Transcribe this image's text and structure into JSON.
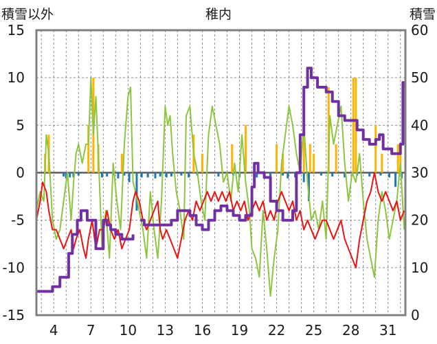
{
  "chart_data": {
    "type": "line",
    "title": "稚内",
    "left_axis_label": "積雪以外",
    "right_axis_label": "積雪",
    "xlim": [
      2.6,
      32.4
    ],
    "x_ticks": [
      4,
      7,
      10,
      13,
      16,
      19,
      22,
      25,
      28,
      31
    ],
    "ylim_left": [
      -15,
      15
    ],
    "y_ticks_left": [
      -15,
      -10,
      -5,
      0,
      5,
      10,
      15
    ],
    "ylim_right": [
      0,
      60
    ],
    "y_ticks_right": [
      0,
      10,
      20,
      30,
      40,
      50,
      60
    ],
    "grid": true,
    "colors": {
      "green": "#8cc63f",
      "red": "#ee1111",
      "purple": "#7030a0",
      "orange": "#ffb300",
      "blue": "#1f78b4",
      "zero_line": "#5a5a5a",
      "frame": "#7f7f7f"
    },
    "series": [
      {
        "axis": "left",
        "style": "line",
        "color_key": "green",
        "x": [
          2.6,
          2.9,
          3.2,
          3.4,
          3.6,
          3.9,
          4.2,
          4.5,
          4.8,
          5.1,
          5.4,
          5.6,
          5.8,
          6.0,
          6.3,
          6.6,
          6.8,
          7.0,
          7.2,
          7.4,
          7.6,
          7.9,
          8.2,
          8.5,
          8.8,
          9.1,
          9.4,
          9.7,
          10.0,
          10.2,
          10.4,
          10.6,
          10.9,
          11.2,
          11.5,
          11.8,
          12.1,
          12.4,
          12.7,
          13.0,
          13.2,
          13.4,
          13.6,
          13.9,
          14.2,
          14.5,
          14.7,
          15.0,
          15.3,
          15.6,
          15.9,
          16.2,
          16.5,
          16.8,
          17.1,
          17.4,
          17.7,
          18.0,
          18.3,
          18.6,
          18.9,
          19.2,
          19.5,
          19.8,
          20.0,
          20.3,
          20.6,
          20.9,
          21.2,
          21.5,
          21.8,
          22.1,
          22.4,
          22.7,
          23.0,
          23.3,
          23.6,
          23.9,
          24.2,
          24.5,
          24.8,
          25.1,
          25.4,
          25.7,
          26.0,
          26.3,
          26.6,
          26.9,
          27.2,
          27.5,
          27.8,
          28.1,
          28.4,
          28.7,
          29.0,
          29.3,
          29.6,
          29.9,
          30.2,
          30.5,
          30.8,
          31.1,
          31.4,
          31.7,
          32.0,
          32.3
        ],
        "y": [
          -4,
          -2,
          -3,
          4,
          2,
          -5,
          -7,
          -6,
          -3,
          0,
          -5,
          -1,
          2,
          3,
          1,
          3,
          3,
          10,
          4,
          8,
          2,
          -8,
          -4,
          -9,
          1,
          -3,
          -6,
          3,
          8,
          9,
          -1,
          -2,
          -4,
          -6,
          -9,
          -2,
          -6,
          -9,
          -3,
          7,
          5,
          6,
          2,
          -2,
          -4,
          -7,
          6,
          7,
          2,
          0,
          -3,
          -5,
          4,
          7,
          5,
          3,
          -1,
          0,
          -3,
          1,
          -2,
          4,
          -1,
          -4,
          -8,
          -9,
          -11,
          -4,
          -8,
          -13,
          -9,
          -6,
          1,
          4,
          7,
          5,
          2,
          0,
          5,
          -1,
          -5,
          -4,
          -6,
          -3,
          -7,
          6,
          3,
          5,
          7,
          1,
          -3,
          0,
          -1,
          2,
          -3,
          -7,
          -9,
          -11,
          -5,
          -2,
          -4,
          -7,
          -5,
          -3,
          1,
          -6
        ]
      },
      {
        "axis": "left",
        "style": "line",
        "color_key": "red",
        "x": [
          2.6,
          2.9,
          3.1,
          3.4,
          3.6,
          3.9,
          4.2,
          4.5,
          4.8,
          5.1,
          5.4,
          5.6,
          5.8,
          6.1,
          6.4,
          6.6,
          6.8,
          7.1,
          7.4,
          7.7,
          8.0,
          8.3,
          8.6,
          8.9,
          9.2,
          9.5,
          9.8,
          10.1,
          10.4,
          10.6,
          10.9,
          11.2,
          11.5,
          11.8,
          12.1,
          12.4,
          12.6,
          12.8,
          13.1,
          13.4,
          13.7,
          14.0,
          14.3,
          14.6,
          14.9,
          15.2,
          15.5,
          15.8,
          16.1,
          16.4,
          16.7,
          17.0,
          17.3,
          17.6,
          17.9,
          18.2,
          18.5,
          18.8,
          19.1,
          19.4,
          19.7,
          20.0,
          20.3,
          20.6,
          20.9,
          21.2,
          21.5,
          21.8,
          22.1,
          22.4,
          22.7,
          23.0,
          23.3,
          23.6,
          23.9,
          24.2,
          24.5,
          24.8,
          25.1,
          25.4,
          25.7,
          26.0,
          26.3,
          26.6,
          26.9,
          27.2,
          27.5,
          27.8,
          28.1,
          28.4,
          28.7,
          29.0,
          29.3,
          29.6,
          29.9,
          30.2,
          30.5,
          30.8,
          31.1,
          31.4,
          31.7,
          32.0,
          32.3
        ],
        "y": [
          -5,
          -3,
          -1,
          -2,
          -4,
          -6,
          -6,
          -7,
          -8,
          -7,
          -6,
          -8,
          -7,
          -6,
          -8,
          -9,
          -7,
          -5,
          -8,
          -6,
          -6,
          -4,
          -6,
          -7,
          -6,
          -8,
          -7,
          -6,
          -3,
          -2,
          -3,
          -5,
          -6,
          -5,
          -4,
          -3,
          -6,
          -7,
          -6,
          -7,
          -8,
          -9,
          -7,
          -5,
          -4,
          -5,
          -3,
          -4,
          -3,
          -2,
          -3,
          -2,
          -3,
          -2,
          -3,
          -2,
          -4,
          -3,
          -4,
          -3,
          -5,
          -4,
          -3,
          -4,
          -3,
          -5,
          -4,
          -5,
          -3,
          -2,
          -3,
          -4,
          -3,
          -5,
          -4,
          -6,
          -5,
          -6,
          -7,
          -6,
          -5,
          -5,
          -6,
          -7,
          -6,
          -5,
          -7,
          -8,
          -9,
          -10,
          -7,
          -5,
          -3,
          -2,
          0,
          -2,
          -3,
          -2,
          -3,
          -4,
          -3,
          -5,
          -4
        ]
      },
      {
        "axis": "right",
        "style": "step",
        "color_key": "purple",
        "x": [
          2.6,
          3.5,
          3.9,
          4.5,
          4.8,
          5.2,
          5.5,
          5.9,
          6.2,
          6.7,
          7.2,
          7.4,
          7.6,
          8.0,
          8.3,
          8.6,
          9.0,
          9.5,
          10.0,
          10.4
        ],
        "y": [
          5,
          5,
          6,
          8,
          8,
          13,
          17,
          20,
          22,
          20,
          20,
          14,
          14,
          20,
          19,
          18,
          17,
          16,
          16,
          17
        ]
      },
      {
        "axis": "right",
        "style": "step",
        "color_key": "purple",
        "x": [
          11.0,
          11.3,
          12.0,
          13.0,
          13.5,
          14.0,
          14.6,
          15.0,
          15.5,
          16.0,
          16.5,
          17.0,
          17.5,
          18.0,
          18.5,
          19.0,
          19.5,
          20.0,
          20.2,
          20.5,
          21.0,
          21.5,
          22.0,
          22.5,
          23.0,
          23.3,
          23.6,
          23.9,
          24.2,
          24.5,
          24.8,
          25.0,
          25.3,
          25.6,
          26.0,
          26.5,
          27.0,
          27.5,
          28.0,
          28.5,
          29.0,
          29.5,
          30.0,
          30.3,
          30.6,
          31.0,
          31.3,
          31.6,
          32.0,
          32.2,
          32.35
        ],
        "y": [
          20,
          19,
          19,
          19,
          20,
          22,
          22,
          21,
          19,
          18,
          20,
          22,
          23,
          22,
          21,
          20,
          21,
          27,
          32,
          30,
          29,
          24,
          22,
          20,
          20,
          22,
          30,
          38,
          48,
          52,
          50,
          50,
          48,
          48,
          47,
          45,
          42,
          41,
          41,
          39,
          37,
          36,
          37,
          38,
          35,
          35,
          34,
          34,
          36,
          49,
          48
        ]
      },
      {
        "axis": "left",
        "style": "bar",
        "color_key": "orange",
        "x": [
          3.3,
          3.6,
          6.8,
          7.2,
          7.6,
          9.5,
          15.3,
          16.0,
          18.4,
          19.5,
          22.0,
          22.5,
          24.2,
          24.7,
          25.0,
          26.2,
          26.8,
          28.2,
          28.4,
          30.0,
          30.5,
          31.8,
          32.0
        ],
        "y": [
          2,
          4,
          5,
          10,
          3,
          2,
          4,
          2,
          3,
          5,
          3,
          2,
          4,
          3,
          2,
          9,
          3,
          10,
          10,
          5,
          2,
          3,
          2
        ]
      },
      {
        "axis": "left",
        "style": "bar",
        "color_key": "blue",
        "x": [
          4.8,
          5.0,
          5.3,
          5.6,
          6.0,
          7.9,
          8.3,
          8.8,
          9.2,
          9.7,
          10.1,
          10.7,
          11.1,
          11.6,
          12.2,
          12.6,
          13.1,
          13.5,
          14.3,
          14.9,
          15.6,
          17.3,
          18.5,
          19.0,
          20.4,
          21.5,
          22.5,
          22.9,
          23.5,
          24.2,
          24.6,
          25.6,
          26.5,
          27.5,
          28.5,
          29.5,
          30.4,
          31.1,
          31.6,
          32.1
        ],
        "y": [
          -0.4,
          -0.6,
          -0.5,
          -0.5,
          -0.3,
          -0.5,
          -0.4,
          -0.3,
          -0.6,
          -0.3,
          -1,
          -4,
          -0.5,
          -0.5,
          -0.6,
          -0.4,
          -0.5,
          -0.4,
          -0.3,
          -0.5,
          -0.3,
          -0.4,
          -0.3,
          -0.5,
          -0.5,
          -0.4,
          -0.3,
          -0.6,
          -0.5,
          -1,
          -3,
          -0.3,
          -0.4,
          -0.5,
          -0.3,
          -0.4,
          -0.3,
          -0.5,
          -1.5,
          -0.6
        ]
      }
    ]
  }
}
